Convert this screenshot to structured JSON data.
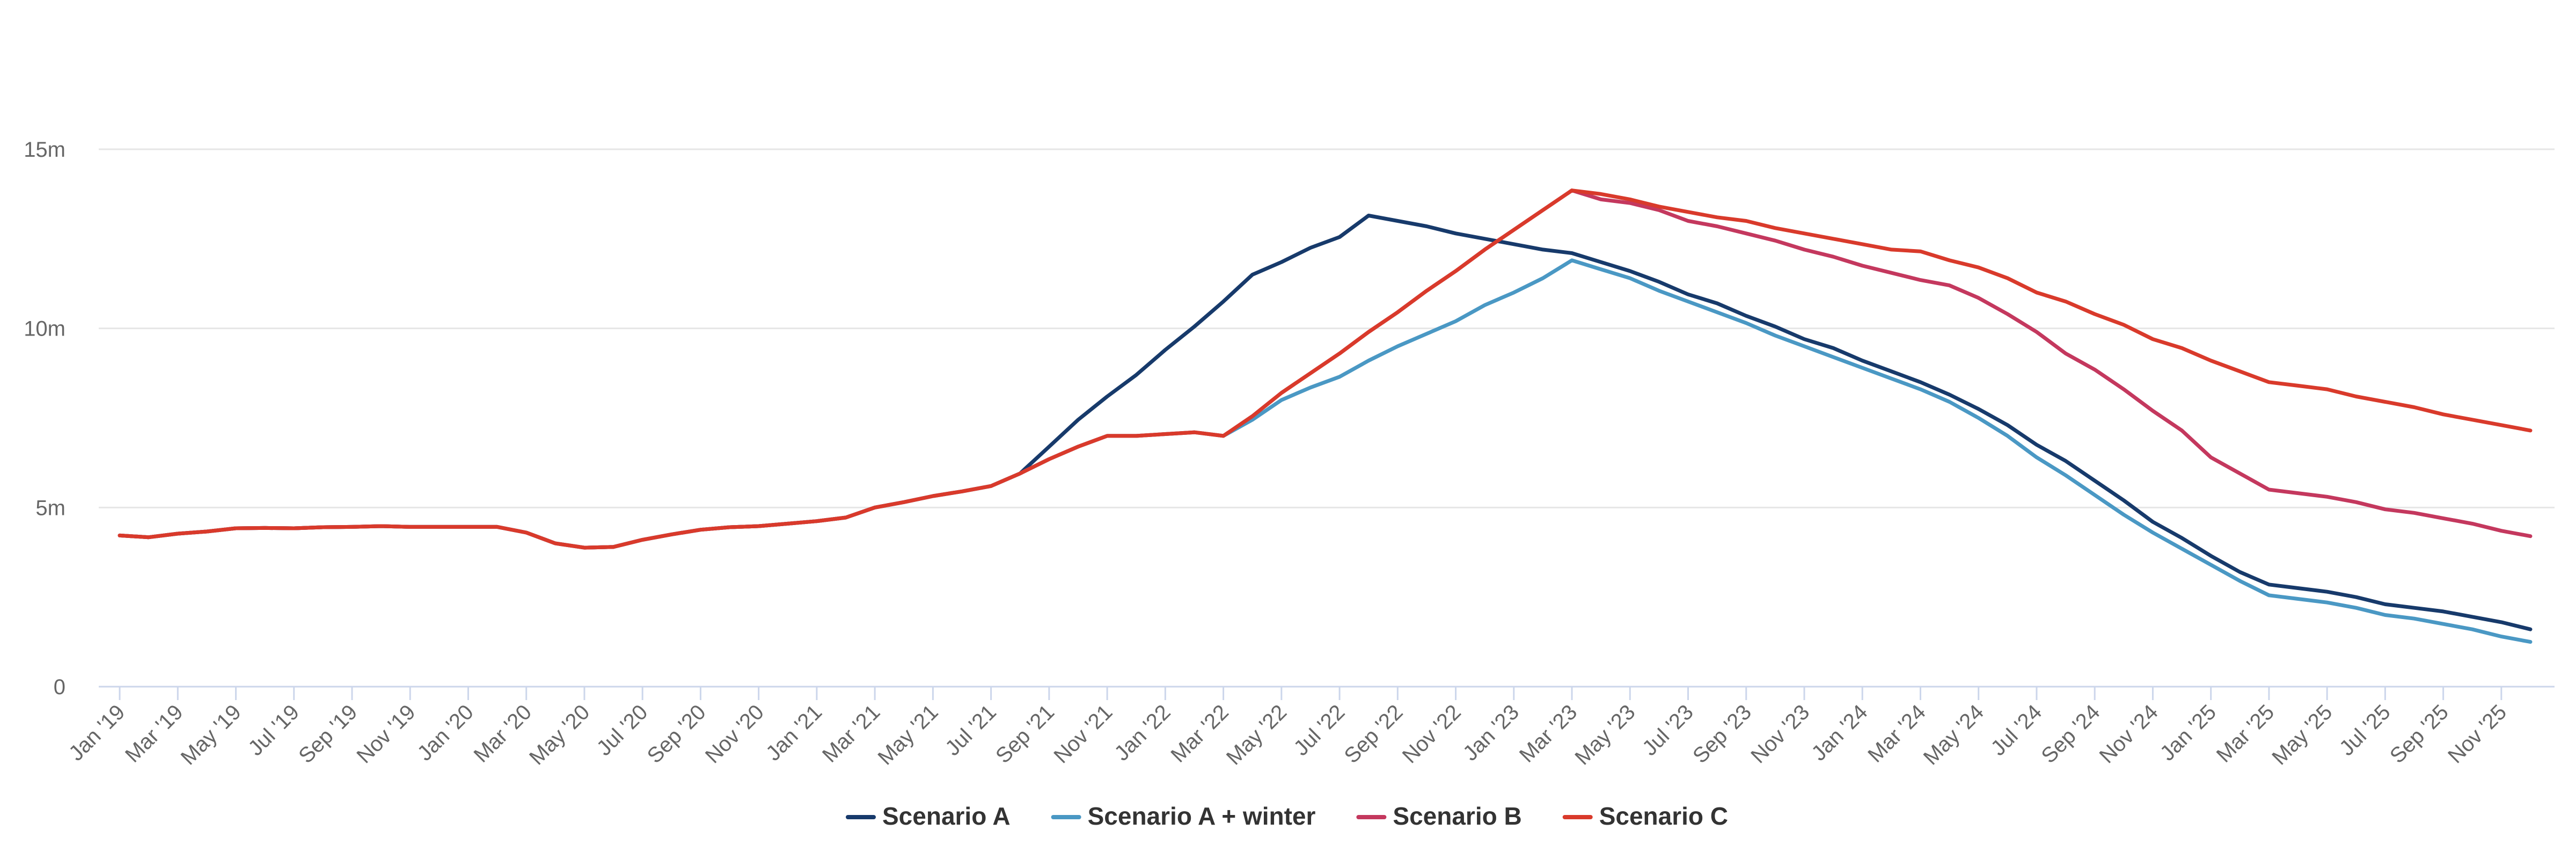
{
  "chart_data": {
    "type": "line",
    "categories": [
      "Jan '19",
      null,
      "Mar '19",
      null,
      "May '19",
      null,
      "Jul '19",
      null,
      "Sep '19",
      null,
      "Nov '19",
      null,
      "Jan '20",
      null,
      "Mar '20",
      null,
      "May '20",
      null,
      "Jul '20",
      null,
      "Sep '20",
      null,
      "Nov '20",
      null,
      "Jan '21",
      null,
      "Mar '21",
      null,
      "May '21",
      null,
      "Jul '21",
      null,
      "Sep '21",
      null,
      "Nov '21",
      null,
      "Jan '22",
      null,
      "Mar '22",
      null,
      "May '22",
      null,
      "Jul '22",
      null,
      "Sep '22",
      null,
      "Nov '22",
      null,
      "Jan '23",
      null,
      "Mar '23",
      null,
      "May '23",
      null,
      "Jul '23",
      null,
      "Sep '23",
      null,
      "Nov '23",
      null,
      "Jan '24",
      null,
      "Mar '24",
      null,
      "May '24",
      null,
      "Jul '24",
      null,
      "Sep '24",
      null,
      "Nov '24",
      null,
      "Jan '25",
      null,
      "Mar '25",
      null,
      "May '25",
      null,
      "Jul '25",
      null,
      "Sep '25",
      null,
      "Nov '25",
      null
    ],
    "series": [
      {
        "name": "Scenario A",
        "color": "#173a6b",
        "values": [
          4.22,
          4.17,
          4.27,
          4.33,
          4.42,
          4.43,
          4.42,
          4.45,
          4.46,
          4.48,
          4.46,
          4.46,
          4.46,
          4.46,
          4.3,
          4.0,
          3.88,
          3.9,
          4.1,
          4.25,
          4.38,
          4.45,
          4.48,
          4.55,
          4.62,
          4.72,
          5.0,
          5.15,
          5.32,
          5.45,
          5.6,
          5.95,
          6.7,
          7.45,
          8.1,
          8.7,
          9.4,
          10.05,
          10.75,
          11.5,
          11.85,
          12.25,
          12.55,
          13.15,
          13.0,
          12.85,
          12.65,
          12.5,
          12.35,
          12.2,
          12.1,
          11.85,
          11.6,
          11.3,
          10.95,
          10.7,
          10.35,
          10.05,
          9.7,
          9.45,
          9.1,
          8.8,
          8.5,
          8.15,
          7.75,
          7.3,
          6.75,
          6.3,
          5.75,
          5.2,
          4.6,
          4.15,
          3.65,
          3.2,
          2.85,
          2.75,
          2.65,
          2.5,
          2.3,
          2.2,
          2.1,
          1.95,
          1.8,
          1.6
        ]
      },
      {
        "name": "Scenario A + winter",
        "color": "#4a98c4",
        "values": [
          4.22,
          4.17,
          4.27,
          4.33,
          4.42,
          4.43,
          4.42,
          4.45,
          4.46,
          4.48,
          4.46,
          4.46,
          4.46,
          4.46,
          4.3,
          4.0,
          3.88,
          3.9,
          4.1,
          4.25,
          4.38,
          4.45,
          4.48,
          4.55,
          4.62,
          4.72,
          5.0,
          5.15,
          5.32,
          5.45,
          5.6,
          5.95,
          6.35,
          6.7,
          7.0,
          7.0,
          7.05,
          7.1,
          7.0,
          7.45,
          8.0,
          8.35,
          8.65,
          9.1,
          9.5,
          9.85,
          10.2,
          10.65,
          11.0,
          11.4,
          11.9,
          11.65,
          11.4,
          11.05,
          10.75,
          10.45,
          10.15,
          9.8,
          9.5,
          9.2,
          8.9,
          8.6,
          8.3,
          7.95,
          7.5,
          7.0,
          6.4,
          5.9,
          5.35,
          4.8,
          4.3,
          3.85,
          3.4,
          2.95,
          2.55,
          2.45,
          2.35,
          2.2,
          2.0,
          1.9,
          1.75,
          1.6,
          1.4,
          1.25
        ]
      },
      {
        "name": "Scenario B",
        "color": "#c4385e",
        "values": [
          4.22,
          4.17,
          4.27,
          4.33,
          4.42,
          4.43,
          4.42,
          4.45,
          4.46,
          4.48,
          4.46,
          4.46,
          4.46,
          4.46,
          4.3,
          4.0,
          3.88,
          3.9,
          4.1,
          4.25,
          4.38,
          4.45,
          4.48,
          4.55,
          4.62,
          4.72,
          5.0,
          5.15,
          5.32,
          5.45,
          5.6,
          5.95,
          6.35,
          6.7,
          7.0,
          7.0,
          7.05,
          7.1,
          7.0,
          7.55,
          8.2,
          8.75,
          9.3,
          9.9,
          10.45,
          11.05,
          11.6,
          12.2,
          12.75,
          13.3,
          13.85,
          13.6,
          13.5,
          13.3,
          13.0,
          12.85,
          12.65,
          12.45,
          12.2,
          12.0,
          11.75,
          11.55,
          11.35,
          11.2,
          10.85,
          10.4,
          9.9,
          9.3,
          8.85,
          8.3,
          7.7,
          7.15,
          6.4,
          5.95,
          5.5,
          5.4,
          5.3,
          5.15,
          4.95,
          4.85,
          4.7,
          4.55,
          4.35,
          4.2
        ]
      },
      {
        "name": "Scenario C",
        "color": "#d93a2b",
        "values": [
          4.22,
          4.17,
          4.27,
          4.33,
          4.42,
          4.43,
          4.42,
          4.45,
          4.46,
          4.48,
          4.46,
          4.46,
          4.46,
          4.46,
          4.3,
          4.0,
          3.88,
          3.9,
          4.1,
          4.25,
          4.38,
          4.45,
          4.48,
          4.55,
          4.62,
          4.72,
          5.0,
          5.15,
          5.32,
          5.45,
          5.6,
          5.95,
          6.35,
          6.7,
          7.0,
          7.0,
          7.05,
          7.1,
          7.0,
          7.55,
          8.2,
          8.75,
          9.3,
          9.9,
          10.45,
          11.05,
          11.6,
          12.2,
          12.75,
          13.3,
          13.85,
          13.75,
          13.6,
          13.4,
          13.25,
          13.1,
          13.0,
          12.8,
          12.65,
          12.5,
          12.35,
          12.2,
          12.15,
          11.9,
          11.7,
          11.4,
          11.0,
          10.75,
          10.4,
          10.1,
          9.7,
          9.45,
          9.1,
          8.8,
          8.5,
          8.4,
          8.3,
          8.1,
          7.95,
          7.8,
          7.6,
          7.45,
          7.3,
          7.15
        ]
      }
    ],
    "ylim": [
      0,
      15
    ],
    "yticks": [
      0,
      {
        "value": 5,
        "label": "5m"
      },
      {
        "value": 10,
        "label": "10m"
      },
      {
        "value": 15,
        "label": "15m"
      }
    ],
    "grid": true
  }
}
